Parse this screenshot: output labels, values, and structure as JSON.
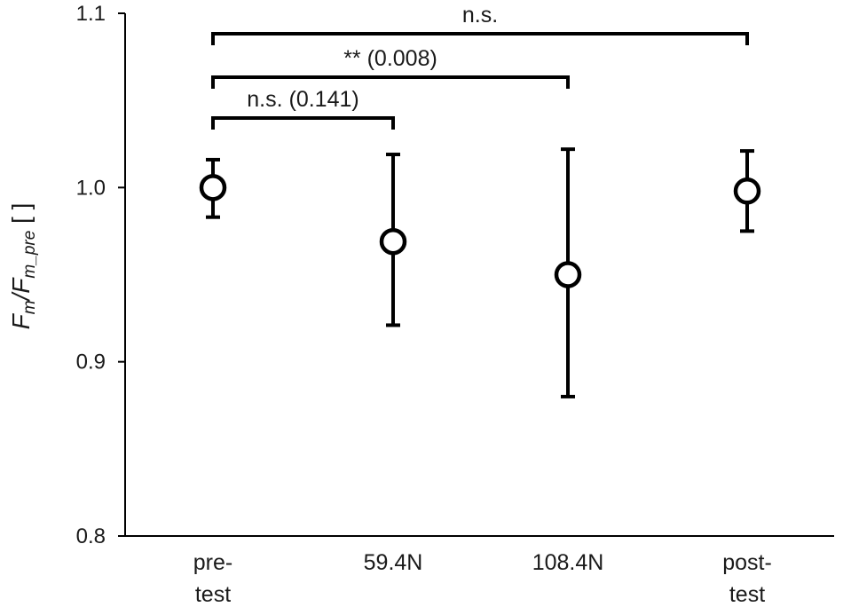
{
  "chart_data": {
    "type": "scatter",
    "title": "",
    "xlabel": "",
    "ylabel": {
      "parts": [
        {
          "text": "F",
          "sub": false
        },
        {
          "text": "m",
          "sub": true
        },
        {
          "text": "/F",
          "sub": false
        },
        {
          "text": "m_pre",
          "sub": true
        },
        {
          "text": " [ ]",
          "sub": false
        }
      ]
    },
    "ylim": [
      0.8,
      1.1
    ],
    "yticks": [
      {
        "value": 0.8,
        "label": "0.8"
      },
      {
        "value": 0.9,
        "label": "0.9"
      },
      {
        "value": 1.0,
        "label": "1.0"
      },
      {
        "value": 1.1,
        "label": "1.1"
      }
    ],
    "categories": [
      {
        "lines": [
          "pre-",
          "test"
        ]
      },
      {
        "lines": [
          "59.4N"
        ]
      },
      {
        "lines": [
          "108.4N"
        ]
      },
      {
        "lines": [
          "post-",
          "test"
        ]
      }
    ],
    "series": [
      {
        "values": [
          1.0,
          0.969,
          0.95,
          0.998
        ],
        "err_low": [
          0.983,
          0.921,
          0.88,
          0.975
        ],
        "err_high": [
          1.016,
          1.019,
          1.022,
          1.021
        ]
      }
    ],
    "grid": false,
    "legend": "none",
    "annotations": [
      {
        "from": 0,
        "to": 1,
        "label": "n.s. (0.141)"
      },
      {
        "from": 0,
        "to": 2,
        "label": "** (0.008)"
      },
      {
        "from": 0,
        "to": 3,
        "label": "n.s."
      }
    ]
  }
}
